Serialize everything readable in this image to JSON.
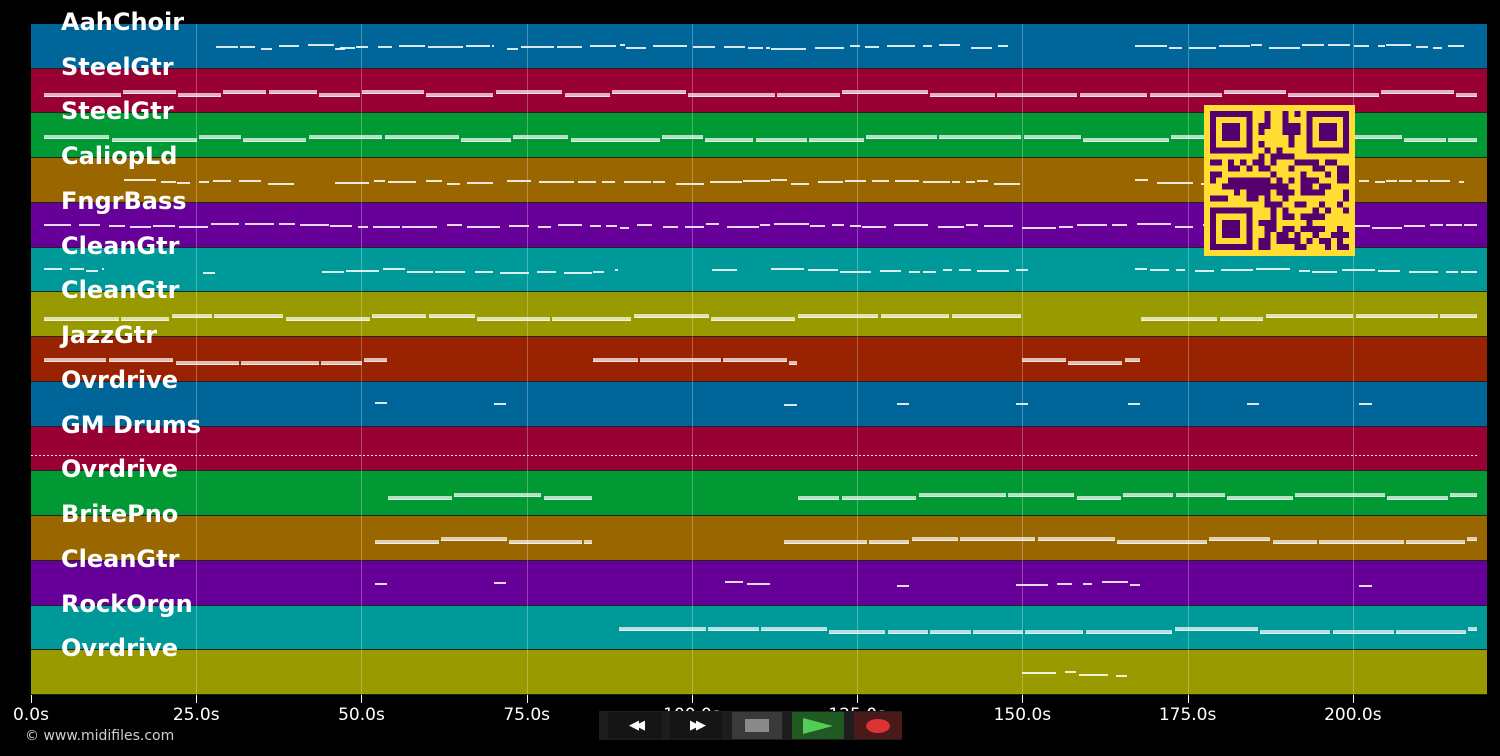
{
  "app": {
    "copyright": "© www.midifiles.com"
  },
  "timeline": {
    "duration_s": 220.3,
    "ticks": [
      {
        "t": 0,
        "label": "0.0s"
      },
      {
        "t": 25,
        "label": "25.0s"
      },
      {
        "t": 50,
        "label": "50.0s"
      },
      {
        "t": 75,
        "label": "75.0s"
      },
      {
        "t": 100,
        "label": "100.0s"
      },
      {
        "t": 125,
        "label": "125.0s"
      },
      {
        "t": 150,
        "label": "150.0s"
      },
      {
        "t": 175,
        "label": "175.0s"
      },
      {
        "t": 200,
        "label": "200.0s"
      }
    ]
  },
  "tracks": [
    {
      "name": "AahChoir",
      "color": "#006699",
      "style": "thin",
      "segments": [
        [
          28,
          50
        ],
        [
          46,
          70
        ],
        [
          72,
          90
        ],
        [
          90,
          112
        ],
        [
          112,
          135
        ],
        [
          135,
          148
        ],
        [
          167,
          205
        ],
        [
          205,
          217
        ]
      ]
    },
    {
      "name": "SteelGtr",
      "color": "#990033",
      "style": "thick",
      "segments": [
        [
          2,
          219
        ]
      ]
    },
    {
      "name": "SteelGtr",
      "color": "#009933",
      "style": "thick",
      "segments": [
        [
          2,
          219
        ]
      ]
    },
    {
      "name": "CaliopLd",
      "color": "#996600",
      "style": "thin",
      "segments": [
        [
          14,
          40
        ],
        [
          46,
          70
        ],
        [
          72,
          90
        ],
        [
          90,
          112
        ],
        [
          112,
          135
        ],
        [
          135,
          150
        ],
        [
          167,
          205
        ],
        [
          205,
          217
        ]
      ]
    },
    {
      "name": "FngrBass",
      "color": "#660099",
      "style": "thin",
      "segments": [
        [
          2,
          219
        ]
      ]
    },
    {
      "name": "CleanGtr",
      "color": "#009999",
      "style": "thin",
      "segments": [
        [
          2,
          11
        ],
        [
          26,
          28
        ],
        [
          44,
          89
        ],
        [
          103,
          107
        ],
        [
          112,
          151
        ],
        [
          167,
          219
        ]
      ]
    },
    {
      "name": "CleanGtr",
      "color": "#999900",
      "style": "thick",
      "segments": [
        [
          2,
          150
        ],
        [
          168,
          219
        ]
      ]
    },
    {
      "name": "JazzGtr",
      "color": "#992200",
      "style": "thick",
      "segments": [
        [
          2,
          54
        ],
        [
          85,
          116
        ],
        [
          150,
          168
        ]
      ]
    },
    {
      "name": "Ovrdrive",
      "color": "#006699",
      "style": "thin",
      "segments": [
        [
          52,
          54
        ],
        [
          70,
          72
        ],
        [
          114,
          116
        ],
        [
          131,
          133
        ],
        [
          149,
          151
        ],
        [
          166,
          168
        ],
        [
          184,
          186
        ],
        [
          201,
          203
        ]
      ]
    },
    {
      "name": "GM Drums",
      "color": "#990033",
      "style": "dots",
      "segments": [
        [
          0,
          219
        ]
      ]
    },
    {
      "name": "Ovrdrive",
      "color": "#009933",
      "style": "thick",
      "segments": [
        [
          54,
          85
        ],
        [
          116,
          219
        ]
      ]
    },
    {
      "name": "BritePno",
      "color": "#996600",
      "style": "thick",
      "segments": [
        [
          52,
          85
        ],
        [
          114,
          219
        ]
      ]
    },
    {
      "name": "CleanGtr",
      "color": "#660099",
      "style": "thin",
      "segments": [
        [
          52,
          54
        ],
        [
          70,
          72
        ],
        [
          105,
          112
        ],
        [
          131,
          133
        ],
        [
          149,
          168
        ],
        [
          201,
          203
        ]
      ]
    },
    {
      "name": "RockOrgn",
      "color": "#009999",
      "style": "thick",
      "segments": [
        [
          89,
          219
        ]
      ]
    },
    {
      "name": "Ovrdrive",
      "color": "#999900",
      "style": "thin",
      "segments": [
        [
          150,
          166
        ]
      ]
    }
  ],
  "transport": {
    "buttons": [
      {
        "id": "rewind",
        "icon": "rewind-icon",
        "glyph": "◀◀",
        "bg": "#151515",
        "fg": "#ffffff"
      },
      {
        "id": "fast-forward",
        "icon": "fast-forward-icon",
        "glyph": "▶▶",
        "bg": "#151515",
        "fg": "#ffffff"
      },
      {
        "id": "stop",
        "icon": "stop-icon",
        "glyph": "■",
        "bg": "#3a3a3a",
        "fg": "#8a8a8a"
      },
      {
        "id": "play",
        "icon": "play-icon",
        "glyph": "▶",
        "bg": "#1f5a23",
        "fg": "#55cc55"
      },
      {
        "id": "record",
        "icon": "record-icon",
        "glyph": "●",
        "bg": "#4a1a1a",
        "fg": "#dd3333"
      }
    ]
  },
  "qr": {
    "bg": "#ffdd33",
    "fg": "#55006e",
    "modules": 25
  }
}
